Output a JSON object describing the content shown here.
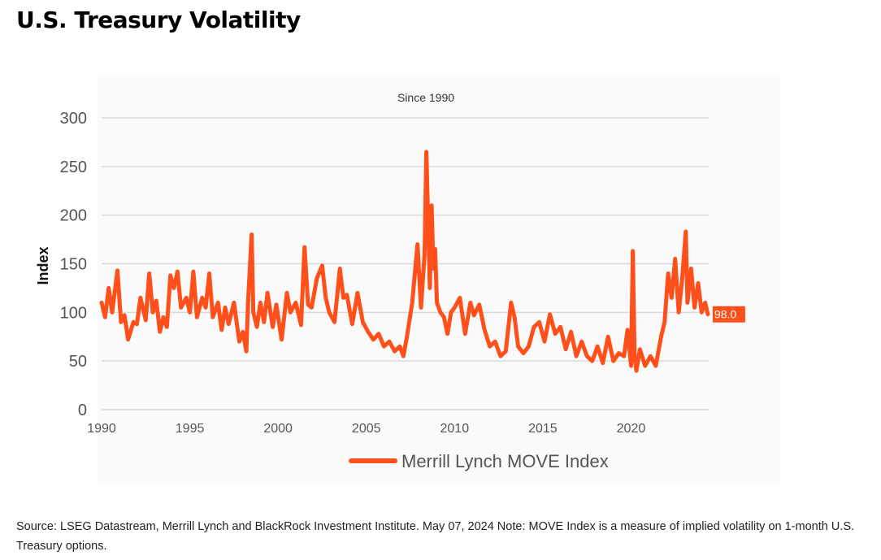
{
  "page": {
    "title": "U.S. Treasury Volatility",
    "source_note": "Source: LSEG Datastream, Merrill Lynch and BlackRock Investment Institute. May 07, 2024 Note: MOVE Index is a measure of implied volatility on 1-month U.S. Treasury options."
  },
  "colors": {
    "series": "#ff4f1a",
    "grid": "#d9d9d9",
    "axis_text": "#555555"
  },
  "chart_data": {
    "type": "line",
    "title": "",
    "subtitle": "Since 1990",
    "xlabel": "",
    "ylabel": "Index",
    "xlim": [
      1990,
      2024.4
    ],
    "ylim": [
      0,
      300
    ],
    "x_ticks": [
      1990,
      1995,
      2000,
      2005,
      2010,
      2015,
      2020
    ],
    "y_ticks": [
      0,
      50,
      100,
      150,
      200,
      250,
      300
    ],
    "grid": "horizontal",
    "legend_position": "bottom",
    "last_value_label": "98.0",
    "series": [
      {
        "name": "Merrill Lynch MOVE Index",
        "x": [
          1990.0,
          1990.2,
          1990.4,
          1990.6,
          1990.9,
          1991.1,
          1991.3,
          1991.5,
          1991.8,
          1992.0,
          1992.2,
          1992.5,
          1992.7,
          1992.9,
          1993.1,
          1993.3,
          1993.5,
          1993.7,
          1993.9,
          1994.1,
          1994.3,
          1994.5,
          1994.8,
          1995.0,
          1995.2,
          1995.4,
          1995.7,
          1995.9,
          1996.1,
          1996.3,
          1996.6,
          1996.8,
          1997.0,
          1997.2,
          1997.5,
          1997.8,
          1998.0,
          1998.2,
          1998.3,
          1998.5,
          1998.6,
          1998.8,
          1999.0,
          1999.2,
          1999.4,
          1999.7,
          1999.9,
          2000.2,
          2000.5,
          2000.7,
          2001.0,
          2001.3,
          2001.5,
          2001.7,
          2001.9,
          2002.2,
          2002.5,
          2002.7,
          2002.9,
          2003.2,
          2003.5,
          2003.7,
          2003.9,
          2004.2,
          2004.5,
          2004.8,
          2005.1,
          2005.4,
          2005.7,
          2006.0,
          2006.3,
          2006.6,
          2006.9,
          2007.1,
          2007.3,
          2007.6,
          2007.9,
          2008.1,
          2008.3,
          2008.4,
          2008.6,
          2008.7,
          2008.8,
          2008.9,
          2009.0,
          2009.2,
          2009.4,
          2009.6,
          2009.8,
          2010.0,
          2010.3,
          2010.6,
          2010.9,
          2011.1,
          2011.4,
          2011.7,
          2012.0,
          2012.3,
          2012.6,
          2012.9,
          2013.2,
          2013.4,
          2013.6,
          2013.9,
          2014.2,
          2014.5,
          2014.8,
          2015.1,
          2015.4,
          2015.7,
          2016.0,
          2016.3,
          2016.6,
          2016.9,
          2017.2,
          2017.5,
          2017.8,
          2018.1,
          2018.4,
          2018.7,
          2019.0,
          2019.3,
          2019.6,
          2019.8,
          2020.0,
          2020.1,
          2020.2,
          2020.3,
          2020.5,
          2020.8,
          2021.1,
          2021.4,
          2021.7,
          2021.9,
          2022.1,
          2022.3,
          2022.5,
          2022.7,
          2022.9,
          2023.1,
          2023.2,
          2023.4,
          2023.6,
          2023.8,
          2024.0,
          2024.2,
          2024.35
        ],
        "values": [
          110,
          95,
          125,
          100,
          143,
          90,
          97,
          72,
          90,
          88,
          115,
          92,
          140,
          100,
          112,
          80,
          95,
          85,
          138,
          125,
          142,
          105,
          115,
          100,
          142,
          95,
          115,
          105,
          140,
          95,
          110,
          82,
          105,
          88,
          110,
          70,
          80,
          60,
          110,
          180,
          100,
          85,
          110,
          90,
          120,
          85,
          108,
          72,
          120,
          100,
          110,
          87,
          167,
          108,
          105,
          135,
          148,
          115,
          100,
          90,
          145,
          115,
          118,
          88,
          120,
          90,
          80,
          72,
          78,
          65,
          70,
          60,
          65,
          55,
          75,
          110,
          170,
          105,
          160,
          265,
          125,
          210,
          145,
          165,
          110,
          100,
          95,
          78,
          100,
          105,
          115,
          78,
          110,
          97,
          108,
          82,
          65,
          70,
          55,
          60,
          110,
          95,
          65,
          58,
          65,
          85,
          90,
          70,
          98,
          78,
          85,
          62,
          80,
          55,
          70,
          55,
          50,
          65,
          48,
          75,
          50,
          58,
          55,
          82,
          45,
          163,
          55,
          40,
          62,
          45,
          55,
          45,
          75,
          90,
          140,
          115,
          155,
          100,
          135,
          183,
          110,
          145,
          105,
          130,
          100,
          110,
          98
        ]
      }
    ]
  }
}
